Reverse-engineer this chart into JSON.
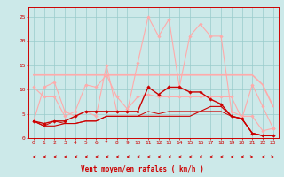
{
  "x": [
    0,
    1,
    2,
    3,
    4,
    5,
    6,
    7,
    8,
    9,
    10,
    11,
    12,
    13,
    14,
    15,
    16,
    17,
    18,
    19,
    20,
    21,
    22,
    23
  ],
  "background_color": "#cce9e9",
  "grid_color": "#99cccc",
  "xlabel": "Vent moyen/en rafales ( km/h )",
  "xlabel_color": "#cc0000",
  "tick_color": "#cc0000",
  "line1": {
    "y": [
      10.5,
      8.5,
      8.5,
      4.5,
      5.5,
      11.0,
      10.5,
      13.0,
      8.5,
      6.0,
      8.5,
      9.0,
      8.5,
      8.5,
      8.5,
      8.5,
      8.5,
      8.5,
      8.5,
      8.5,
      4.0,
      11.0,
      6.5,
      2.0
    ],
    "color": "#ffaaaa",
    "marker": "D",
    "ms": 1.8,
    "lw": 0.8
  },
  "line2": {
    "y": [
      13.0,
      13.0,
      13.0,
      13.0,
      13.0,
      13.0,
      13.0,
      13.0,
      13.0,
      13.0,
      13.0,
      13.0,
      13.0,
      13.0,
      13.0,
      13.0,
      13.0,
      13.0,
      13.0,
      13.0,
      13.0,
      13.0,
      11.0,
      6.5
    ],
    "color": "#ffaaaa",
    "marker": null,
    "ms": 0,
    "lw": 1.2
  },
  "line3": {
    "y": [
      3.5,
      10.5,
      11.5,
      5.5,
      4.5,
      5.5,
      4.5,
      15.0,
      5.5,
      5.5,
      15.5,
      25.0,
      21.0,
      24.5,
      10.5,
      21.0,
      23.5,
      21.0,
      21.0,
      5.5,
      4.5,
      4.5,
      1.5,
      2.0
    ],
    "color": "#ffaaaa",
    "marker": "D",
    "ms": 1.8,
    "lw": 0.8
  },
  "line4": {
    "y": [
      3.5,
      3.0,
      3.5,
      3.5,
      4.5,
      5.5,
      5.5,
      5.5,
      5.5,
      5.5,
      5.5,
      10.5,
      9.0,
      10.5,
      10.5,
      9.5,
      9.5,
      8.0,
      7.0,
      4.5,
      4.0,
      1.0,
      0.5,
      0.5
    ],
    "color": "#cc0000",
    "marker": "D",
    "ms": 1.8,
    "lw": 1.0
  },
  "line5": {
    "y": [
      3.5,
      2.5,
      2.5,
      3.0,
      3.0,
      3.5,
      3.5,
      4.5,
      4.5,
      4.5,
      4.5,
      4.5,
      4.5,
      4.5,
      4.5,
      4.5,
      5.5,
      6.5,
      6.5,
      4.5,
      4.0,
      1.0,
      0.5,
      0.5
    ],
    "color": "#cc0000",
    "marker": null,
    "ms": 0,
    "lw": 0.8
  },
  "line6": {
    "y": [
      3.5,
      2.5,
      3.5,
      3.0,
      3.0,
      3.5,
      3.5,
      4.5,
      4.5,
      4.5,
      4.5,
      5.5,
      5.0,
      5.5,
      5.5,
      5.5,
      5.5,
      5.5,
      5.5,
      4.5,
      4.0,
      1.0,
      0.5,
      0.5
    ],
    "color": "#cc0000",
    "marker": null,
    "ms": 0,
    "lw": 0.7
  },
  "line7": {
    "y": [
      0.0,
      0.0,
      0.0,
      0.0,
      0.0,
      0.0,
      0.0,
      0.0,
      0.0,
      0.0,
      0.0,
      0.0,
      0.0,
      0.0,
      0.0,
      0.0,
      0.0,
      0.0,
      0.0,
      0.0,
      0.0,
      0.0,
      0.0,
      0.0
    ],
    "color": "#cc0000",
    "marker": null,
    "ms": 0,
    "lw": 0.6
  },
  "arrow_color": "#cc0000",
  "ylim": [
    0,
    27
  ],
  "yticks": [
    0,
    5,
    10,
    15,
    20,
    25
  ]
}
